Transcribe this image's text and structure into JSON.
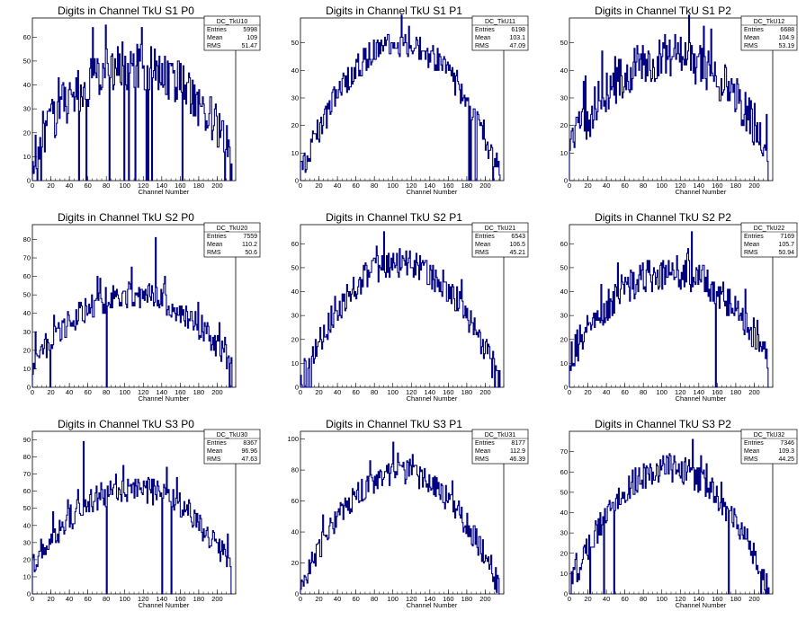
{
  "panels": [
    {
      "title": "Digits in Channel TkU S1 P0",
      "hist": "DC_TkU10",
      "stats": [
        [
          "Entries",
          "5998"
        ],
        [
          "Mean",
          "109"
        ],
        [
          "RMS",
          "51.47"
        ]
      ],
      "xlabel": "Channel Number",
      "xticks": [
        "0",
        "20",
        "40",
        "60",
        "80",
        "100",
        "120",
        "140",
        "160",
        "180",
        "200"
      ],
      "yticks": [
        "0",
        "10",
        "20",
        "30",
        "40",
        "50",
        "60"
      ],
      "ylim": [
        0,
        68
      ],
      "xlim": [
        0,
        220
      ],
      "chart_data": {
        "type": "histogram",
        "nbins": 216,
        "shape": "broad",
        "peak": 48,
        "noise": 10,
        "max": 64,
        "max_bin": 118,
        "dropouts": [
          5,
          9,
          50,
          58,
          83,
          99,
          104,
          111,
          123,
          125,
          129,
          162,
          208,
          214
        ]
      }
    },
    {
      "title": "Digits in Channel TkU S1 P1",
      "hist": "DC_TkU11",
      "stats": [
        [
          "Entries",
          "6198"
        ],
        [
          "Mean",
          "103.1"
        ],
        [
          "RMS",
          "47.09"
        ]
      ],
      "xlabel": "Channel Number",
      "xticks": [
        "0",
        "20",
        "40",
        "60",
        "80",
        "100",
        "120",
        "140",
        "160",
        "180",
        "200"
      ],
      "yticks": [
        "0",
        "10",
        "20",
        "30",
        "40",
        "50"
      ],
      "ylim": [
        0,
        59
      ],
      "xlim": [
        0,
        220
      ],
      "chart_data": {
        "type": "histogram",
        "nbins": 216,
        "shape": "parabola",
        "peak": 50,
        "noise": 5,
        "max": 56,
        "max_bin": 117,
        "dropouts": [
          182,
          184,
          189,
          190,
          208
        ]
      }
    },
    {
      "title": "Digits in Channel TkU S1 P2",
      "hist": "DC_TkU12",
      "stats": [
        [
          "Entries",
          "6688"
        ],
        [
          "Mean",
          "104.9"
        ],
        [
          "RMS",
          "53.19"
        ]
      ],
      "xlabel": "Channel Number",
      "xticks": [
        "0",
        "20",
        "40",
        "60",
        "80",
        "100",
        "120",
        "140",
        "160",
        "180",
        "200"
      ],
      "yticks": [
        "0",
        "10",
        "20",
        "30",
        "40",
        "50"
      ],
      "ylim": [
        0,
        59
      ],
      "xlim": [
        0,
        220
      ],
      "chart_data": {
        "type": "histogram",
        "nbins": 216,
        "shape": "broad",
        "peak": 45,
        "noise": 8,
        "max": 56,
        "max_bin": 145,
        "dropouts": [
          215
        ]
      }
    },
    {
      "title": "Digits in Channel TkU S2 P0",
      "hist": "DC_TkU20",
      "stats": [
        [
          "Entries",
          "7559"
        ],
        [
          "Mean",
          "110.2"
        ],
        [
          "RMS",
          "50.6"
        ]
      ],
      "xlabel": "Channel Number",
      "xticks": [
        "0",
        "20",
        "40",
        "60",
        "80",
        "100",
        "120",
        "140",
        "160",
        "180",
        "200"
      ],
      "yticks": [
        "0",
        "10",
        "20",
        "30",
        "40",
        "50",
        "60",
        "70",
        "80"
      ],
      "ylim": [
        0,
        88
      ],
      "xlim": [
        0,
        220
      ],
      "chart_data": {
        "type": "histogram",
        "nbins": 216,
        "shape": "broad",
        "peak": 50,
        "noise": 7,
        "max": 81,
        "max_bin": 133,
        "dropouts": [
          19,
          80,
          213
        ]
      }
    },
    {
      "title": "Digits in Channel TkU S2 P1",
      "hist": "DC_TkU21",
      "stats": [
        [
          "Entries",
          "6543"
        ],
        [
          "Mean",
          "106.5"
        ],
        [
          "RMS",
          "45.21"
        ]
      ],
      "xlabel": "Channel Number",
      "xticks": [
        "0",
        "20",
        "40",
        "60",
        "80",
        "100",
        "120",
        "140",
        "160",
        "180",
        "200"
      ],
      "yticks": [
        "0",
        "10",
        "20",
        "30",
        "40",
        "50",
        "60"
      ],
      "ylim": [
        0,
        68
      ],
      "xlim": [
        0,
        220
      ],
      "chart_data": {
        "type": "histogram",
        "nbins": 216,
        "shape": "parabola",
        "peak": 52,
        "noise": 6,
        "max": 65,
        "max_bin": 90,
        "dropouts": [
          2,
          3,
          6,
          7,
          10,
          11,
          210,
          214
        ]
      }
    },
    {
      "title": "Digits in Channel TkU S2 P2",
      "hist": "DC_TkU22",
      "stats": [
        [
          "Entries",
          "7169"
        ],
        [
          "Mean",
          "105.7"
        ],
        [
          "RMS",
          "50.94"
        ]
      ],
      "xlabel": "Channel Number",
      "xticks": [
        "0",
        "20",
        "40",
        "60",
        "80",
        "100",
        "120",
        "140",
        "160",
        "180",
        "200"
      ],
      "yticks": [
        "0",
        "10",
        "20",
        "30",
        "40",
        "50",
        "60"
      ],
      "ylim": [
        0,
        68
      ],
      "xlim": [
        0,
        220
      ],
      "chart_data": {
        "type": "histogram",
        "nbins": 216,
        "shape": "broad",
        "peak": 48,
        "noise": 7,
        "max": 65,
        "max_bin": 132,
        "dropouts": [
          158,
          215
        ]
      }
    },
    {
      "title": "Digits in Channel TkU S3 P0",
      "hist": "DC_TkU30",
      "stats": [
        [
          "Entries",
          "8367"
        ],
        [
          "Mean",
          "96.96"
        ],
        [
          "RMS",
          "47.63"
        ]
      ],
      "xlabel": "Channel Number",
      "xticks": [
        "0",
        "20",
        "40",
        "60",
        "80",
        "100",
        "120",
        "140",
        "160",
        "180",
        "200"
      ],
      "yticks": [
        "0",
        "10",
        "20",
        "30",
        "40",
        "50",
        "60",
        "70",
        "80",
        "90"
      ],
      "ylim": [
        0,
        95
      ],
      "xlim": [
        0,
        220
      ],
      "chart_data": {
        "type": "histogram",
        "nbins": 216,
        "shape": "broad",
        "peak": 62,
        "noise": 8,
        "max": 89,
        "max_bin": 55,
        "dropouts": [
          80,
          140,
          150,
          215
        ]
      }
    },
    {
      "title": "Digits in Channel TkU S3 P1",
      "hist": "DC_TkU31",
      "stats": [
        [
          "Entries",
          "8177"
        ],
        [
          "Mean",
          "112.9"
        ],
        [
          "RMS",
          "46.39"
        ]
      ],
      "xlabel": "Channel Number",
      "xticks": [
        "0",
        "20",
        "40",
        "60",
        "80",
        "100",
        "120",
        "140",
        "160",
        "180",
        "200"
      ],
      "yticks": [
        "0",
        "20",
        "40",
        "60",
        "80",
        "100"
      ],
      "ylim": [
        0,
        105
      ],
      "xlim": [
        0,
        220
      ],
      "chart_data": {
        "type": "histogram",
        "nbins": 216,
        "shape": "parabola",
        "peak": 78,
        "noise": 8,
        "max": 98,
        "max_bin": 100,
        "dropouts": [
          215
        ]
      }
    },
    {
      "title": "Digits in Channel TkU S3 P2",
      "hist": "DC_TkU32",
      "stats": [
        [
          "Entries",
          "7346"
        ],
        [
          "Mean",
          "109.3"
        ],
        [
          "RMS",
          "44.25"
        ]
      ],
      "xlabel": "Channel Number",
      "xticks": [
        "0",
        "20",
        "40",
        "60",
        "80",
        "100",
        "120",
        "140",
        "160",
        "180",
        "200"
      ],
      "yticks": [
        "0",
        "10",
        "20",
        "30",
        "40",
        "50",
        "60",
        "70"
      ],
      "ylim": [
        0,
        80
      ],
      "xlim": [
        0,
        220
      ],
      "chart_data": {
        "type": "histogram",
        "nbins": 216,
        "shape": "parabola",
        "peak": 62,
        "noise": 7,
        "max": 76,
        "max_bin": 133,
        "dropouts": [
          1,
          22,
          37,
          48,
          172,
          207,
          212
        ]
      }
    }
  ],
  "colors": {
    "line": "#000080",
    "frame": "#000000"
  }
}
